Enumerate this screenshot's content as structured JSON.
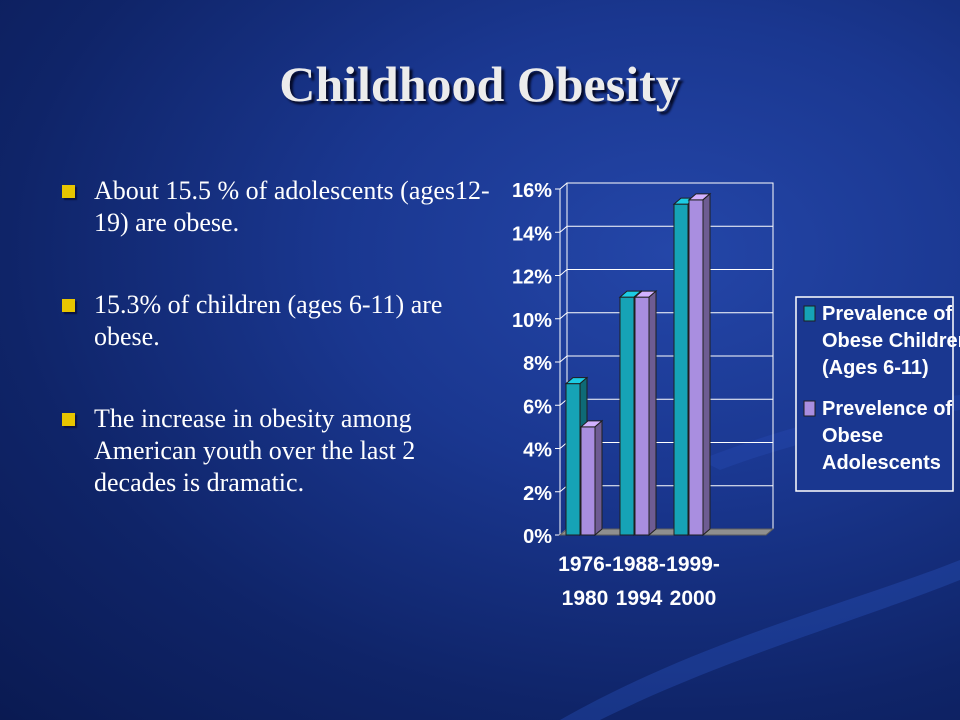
{
  "slide": {
    "title": "Childhood Obesity",
    "bullets": [
      "About 15.5 % of adolescents (ages12-19) are obese.",
      "15.3% of children (ages 6-11) are obese.",
      "The increase in obesity among American youth over the last 2 decades is dramatic."
    ],
    "colors": {
      "background": "#1a3790",
      "bullet": "#e7c500",
      "title": "#ececec",
      "text": "#ffffff"
    }
  },
  "chart_data": {
    "type": "bar",
    "title": "",
    "xlabel": "",
    "ylabel": "",
    "categories": [
      [
        "1976-",
        "1980"
      ],
      [
        "1988-",
        "1994"
      ],
      [
        "1999-",
        "2000"
      ]
    ],
    "series": [
      {
        "name": [
          "Prevalence of",
          "Obese Children",
          "(Ages 6-11)"
        ],
        "values": [
          7.0,
          11.0,
          15.3
        ],
        "color": "#16a3b6"
      },
      {
        "name": [
          "Prevelence of",
          "Obese",
          "Adolescents"
        ],
        "values": [
          5.0,
          11.0,
          15.5
        ],
        "color": "#a98ee0"
      }
    ],
    "ylim": [
      0,
      16
    ],
    "y_ticks": [
      "0%",
      "2%",
      "4%",
      "6%",
      "8%",
      "10%",
      "12%",
      "14%",
      "16%"
    ],
    "grid": true,
    "legend_position": "right",
    "colors": {
      "axis_text": "#ffffff",
      "grid": "#ffffff",
      "legend_bg": "#1a3790"
    }
  }
}
